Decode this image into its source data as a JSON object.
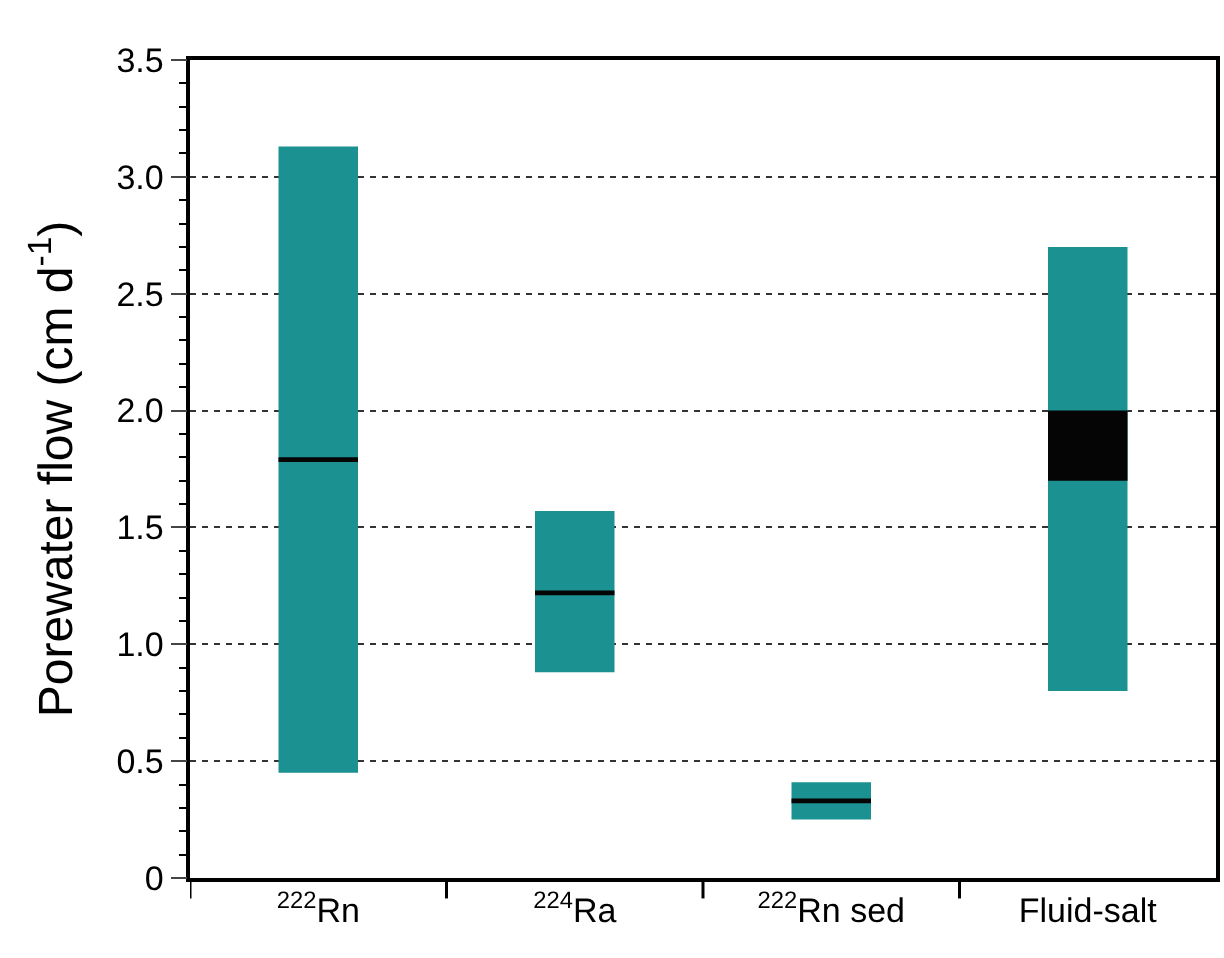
{
  "chart_data": {
    "type": "bar",
    "ylabel": "Porewater flow (cm d$^{-1}$)",
    "categories": [
      "$^{222}$Rn",
      "$^{224}$Ra",
      "$^{222}$Rn sed",
      "Fluid-salt"
    ],
    "series": [
      {
        "color": "#1b9191",
        "base": [
          0.45,
          0.88,
          0.25,
          0.8
        ],
        "values": [
          2.68,
          0.69,
          0.16,
          1.9
        ]
      },
      {
        "color": "#050505",
        "base": [
          1.78,
          1.21,
          0.32,
          1.7
        ],
        "values": [
          0.02,
          0.02,
          0.02,
          0.3
        ]
      }
    ],
    "ylim": [
      0,
      3.5
    ],
    "yticks": [
      0,
      0.5,
      {
        "value": 1,
        "label": "1.0"
      },
      1.5,
      {
        "value": 2,
        "label": "2.0"
      },
      2.5,
      {
        "value": 3,
        "label": "3.0"
      },
      3.5
    ],
    "grid": "y"
  }
}
